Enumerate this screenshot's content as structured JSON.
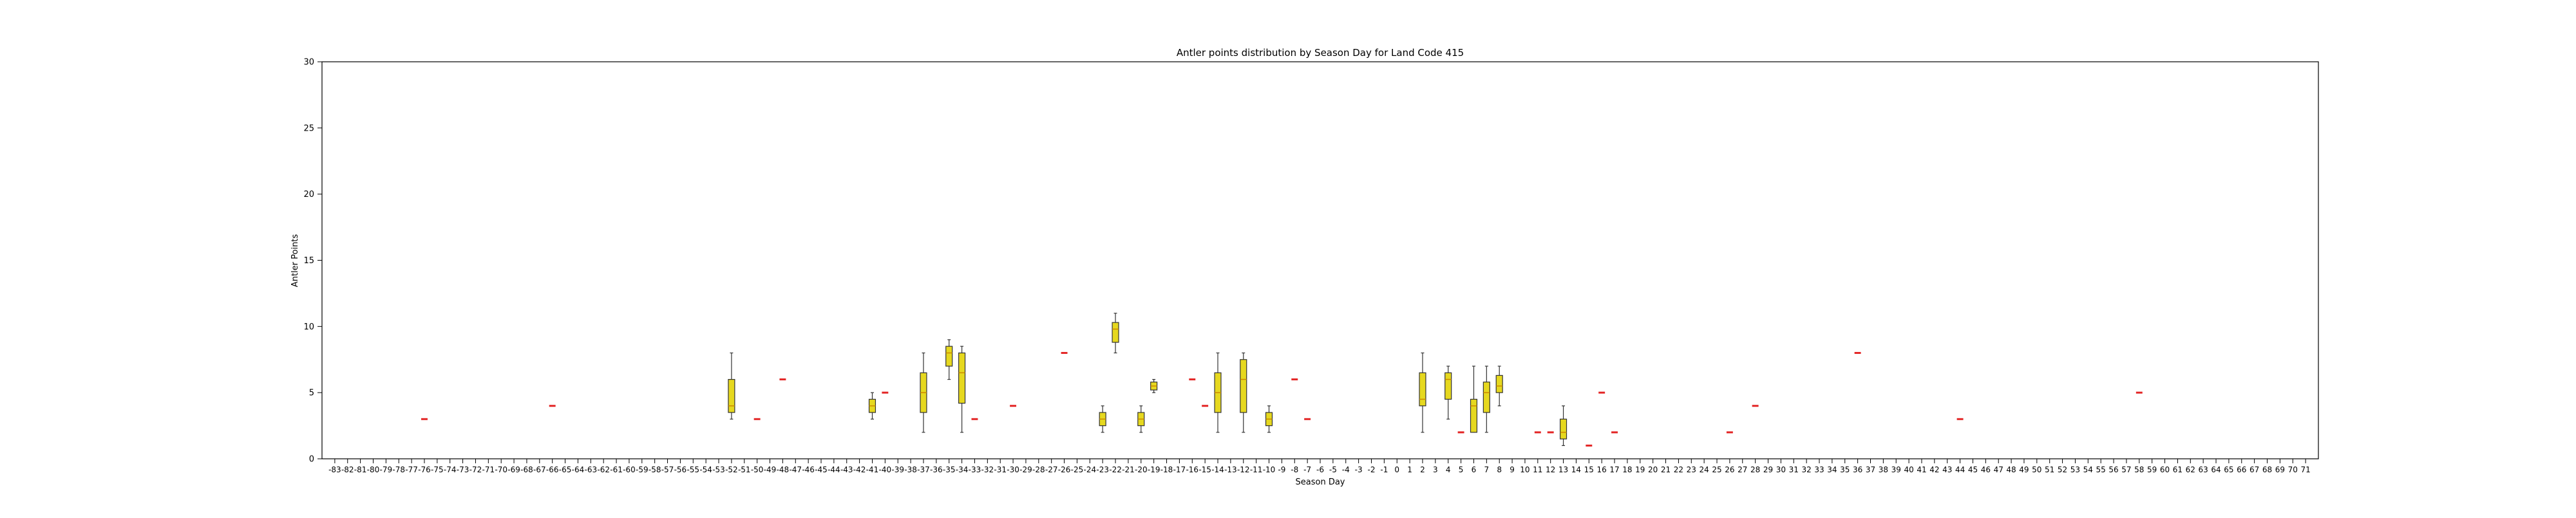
{
  "chart_data": {
    "type": "box",
    "title": "Antler points distribution by Season Day for Land Code 415",
    "xlabel": "Season Day",
    "ylabel": "Antler Points",
    "ylim": [
      0,
      30
    ],
    "yticks": [
      0,
      5,
      10,
      15,
      20,
      25,
      30
    ],
    "categories": [
      "-83",
      "-82",
      "-81",
      "-80",
      "-79",
      "-78",
      "-77",
      "-76",
      "-75",
      "-74",
      "-73",
      "-72",
      "-71",
      "-70",
      "-69",
      "-68",
      "-67",
      "-66",
      "-65",
      "-64",
      "-63",
      "-62",
      "-61",
      "-60",
      "-59",
      "-58",
      "-57",
      "-56",
      "-55",
      "-54",
      "-53",
      "-52",
      "-51",
      "-50",
      "-49",
      "-48",
      "-47",
      "-46",
      "-45",
      "-44",
      "-43",
      "-42",
      "-41",
      "-40",
      "-39",
      "-38",
      "-37",
      "-36",
      "-35",
      "-34",
      "-33",
      "-32",
      "-31",
      "-30",
      "-29",
      "-28",
      "-27",
      "-26",
      "-25",
      "-24",
      "-23",
      "-22",
      "-21",
      "-20",
      "-19",
      "-18",
      "-17",
      "-16",
      "-15",
      "-14",
      "-13",
      "-12",
      "-11",
      "-10",
      "-9",
      "-8",
      "-7",
      "-6",
      "-5",
      "-4",
      "-3",
      "-2",
      "-1",
      "0",
      "1",
      "2",
      "3",
      "4",
      "5",
      "6",
      "7",
      "8",
      "9",
      "10",
      "11",
      "12",
      "13",
      "14",
      "15",
      "16",
      "17",
      "18",
      "19",
      "20",
      "21",
      "22",
      "23",
      "24",
      "25",
      "26",
      "27",
      "28",
      "29",
      "30",
      "31",
      "32",
      "33",
      "34",
      "35",
      "36",
      "37",
      "38",
      "39",
      "40",
      "41",
      "42",
      "43",
      "44",
      "45",
      "46",
      "47",
      "48",
      "49",
      "50",
      "51",
      "52",
      "53",
      "54",
      "55",
      "56",
      "57",
      "58",
      "59",
      "60",
      "61",
      "62",
      "63",
      "64",
      "65",
      "66",
      "67",
      "68",
      "69",
      "70",
      "71"
    ],
    "boxes": [
      {
        "category": "-76",
        "min": 3,
        "q1": 3,
        "median": 3,
        "q3": 3,
        "max": 3
      },
      {
        "category": "-66",
        "min": 4,
        "q1": 4,
        "median": 4,
        "q3": 4,
        "max": 4
      },
      {
        "category": "-52",
        "min": 3,
        "q1": 3.5,
        "median": 4,
        "q3": 6,
        "max": 8
      },
      {
        "category": "-50",
        "min": 3,
        "q1": 3,
        "median": 3,
        "q3": 3,
        "max": 3
      },
      {
        "category": "-48",
        "min": 6,
        "q1": 6,
        "median": 6,
        "q3": 6,
        "max": 6
      },
      {
        "category": "-41",
        "min": 3,
        "q1": 3.5,
        "median": 4,
        "q3": 4.5,
        "max": 5
      },
      {
        "category": "-40",
        "min": 5,
        "q1": 5,
        "median": 5,
        "q3": 5,
        "max": 5
      },
      {
        "category": "-37",
        "min": 2,
        "q1": 3.5,
        "median": 5,
        "q3": 6.5,
        "max": 8
      },
      {
        "category": "-35",
        "min": 6,
        "q1": 7,
        "median": 8,
        "q3": 8.5,
        "max": 9
      },
      {
        "category": "-34",
        "min": 2,
        "q1": 4.2,
        "median": 6.5,
        "q3": 8,
        "max": 8.5
      },
      {
        "category": "-33",
        "min": 3,
        "q1": 3,
        "median": 3,
        "q3": 3,
        "max": 3
      },
      {
        "category": "-30",
        "min": 4,
        "q1": 4,
        "median": 4,
        "q3": 4,
        "max": 4
      },
      {
        "category": "-26",
        "min": 8,
        "q1": 8,
        "median": 8,
        "q3": 8,
        "max": 8
      },
      {
        "category": "-23",
        "min": 2,
        "q1": 2.5,
        "median": 3,
        "q3": 3.5,
        "max": 4
      },
      {
        "category": "-22",
        "min": 8,
        "q1": 8.8,
        "median": 9.8,
        "q3": 10.3,
        "max": 11
      },
      {
        "category": "-20",
        "min": 2,
        "q1": 2.5,
        "median": 3,
        "q3": 3.5,
        "max": 4
      },
      {
        "category": "-19",
        "min": 5,
        "q1": 5.2,
        "median": 5.5,
        "q3": 5.8,
        "max": 6
      },
      {
        "category": "-16",
        "min": 6,
        "q1": 6,
        "median": 6,
        "q3": 6,
        "max": 6
      },
      {
        "category": "-15",
        "min": 4,
        "q1": 4,
        "median": 4,
        "q3": 4,
        "max": 4
      },
      {
        "category": "-14",
        "min": 2,
        "q1": 3.5,
        "median": 5,
        "q3": 6.5,
        "max": 8
      },
      {
        "category": "-12",
        "min": 2,
        "q1": 3.5,
        "median": 6,
        "q3": 7.5,
        "max": 8
      },
      {
        "category": "-10",
        "min": 2,
        "q1": 2.5,
        "median": 3,
        "q3": 3.5,
        "max": 4
      },
      {
        "category": "-8",
        "min": 6,
        "q1": 6,
        "median": 6,
        "q3": 6,
        "max": 6
      },
      {
        "category": "-7",
        "min": 3,
        "q1": 3,
        "median": 3,
        "q3": 3,
        "max": 3
      },
      {
        "category": "2",
        "min": 2,
        "q1": 4,
        "median": 4.5,
        "q3": 6.5,
        "max": 8
      },
      {
        "category": "4",
        "min": 3,
        "q1": 4.5,
        "median": 6,
        "q3": 6.5,
        "max": 7
      },
      {
        "category": "5",
        "min": 2,
        "q1": 2,
        "median": 2,
        "q3": 2,
        "max": 2
      },
      {
        "category": "6",
        "min": 2,
        "q1": 2,
        "median": 4,
        "q3": 4.5,
        "max": 7
      },
      {
        "category": "7",
        "min": 2,
        "q1": 3.5,
        "median": 5,
        "q3": 5.8,
        "max": 7
      },
      {
        "category": "8",
        "min": 4,
        "q1": 5,
        "median": 5.5,
        "q3": 6.3,
        "max": 7
      },
      {
        "category": "11",
        "min": 2,
        "q1": 2,
        "median": 2,
        "q3": 2,
        "max": 2
      },
      {
        "category": "12",
        "min": 2,
        "q1": 2,
        "median": 2,
        "q3": 2,
        "max": 2
      },
      {
        "category": "13",
        "min": 1,
        "q1": 1.5,
        "median": 2,
        "q3": 3,
        "max": 4
      },
      {
        "category": "15",
        "min": 1,
        "q1": 1,
        "median": 1,
        "q3": 1,
        "max": 1
      },
      {
        "category": "16",
        "min": 5,
        "q1": 5,
        "median": 5,
        "q3": 5,
        "max": 5
      },
      {
        "category": "17",
        "min": 2,
        "q1": 2,
        "median": 2,
        "q3": 2,
        "max": 2
      },
      {
        "category": "26",
        "min": 2,
        "q1": 2,
        "median": 2,
        "q3": 2,
        "max": 2
      },
      {
        "category": "28",
        "min": 4,
        "q1": 4,
        "median": 4,
        "q3": 4,
        "max": 4
      },
      {
        "category": "36",
        "min": 8,
        "q1": 8,
        "median": 8,
        "q3": 8,
        "max": 8
      },
      {
        "category": "44",
        "min": 3,
        "q1": 3,
        "median": 3,
        "q3": 3,
        "max": 3
      },
      {
        "category": "58",
        "min": 5,
        "q1": 5,
        "median": 5,
        "q3": 5,
        "max": 5
      }
    ],
    "colors": {
      "box_fill": "#e6d81f",
      "box_edge": "#333333",
      "median": "#cc8a00",
      "flat_median": "#e32626",
      "axis": "#000000"
    },
    "grid": false
  }
}
